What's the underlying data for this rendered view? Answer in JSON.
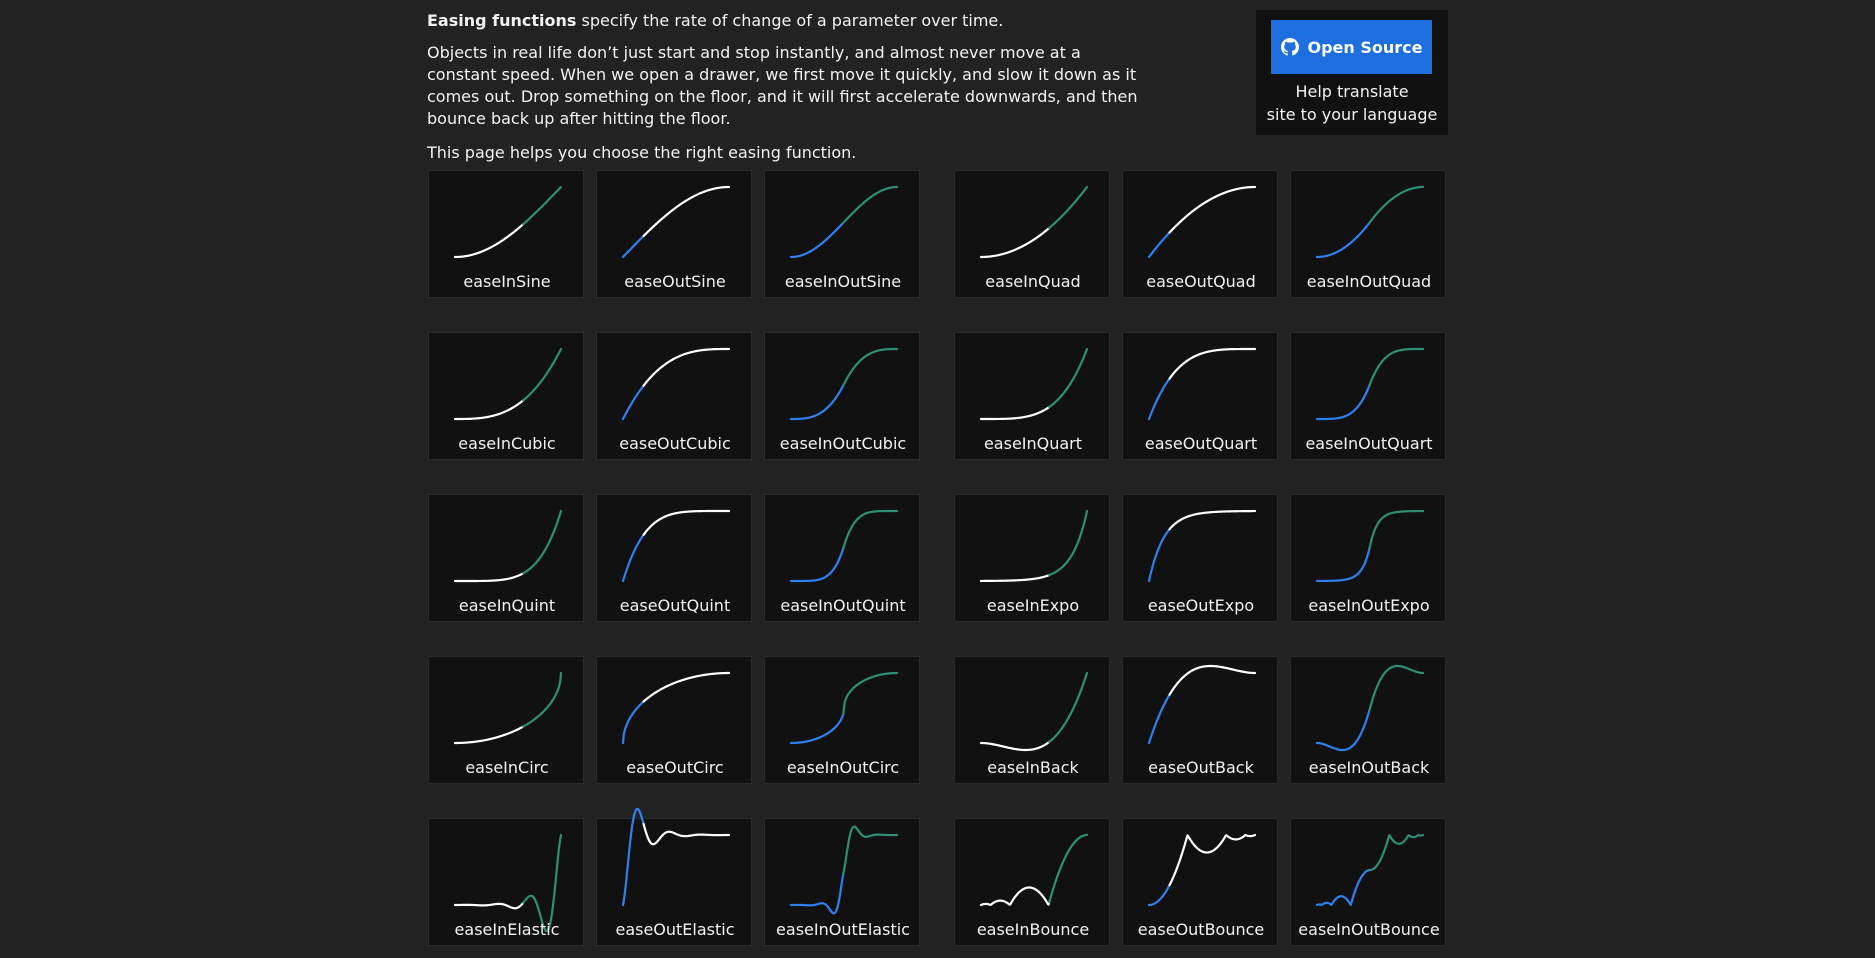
{
  "intro": {
    "lead_bold": "Easing functions",
    "lead_rest": " specify the rate of change of a parameter over time.",
    "paragraph_2": "Objects in real life don’t just start and stop instantly, and almost never move at a constant speed. When we open a drawer, we first move it quickly, and slow it down as it comes out. Drop something on the floor, and it will first accelerate downwards, and then bounce back up after hitting the floor.",
    "paragraph_3": "This page helps you choose the right easing function."
  },
  "open_source": {
    "button_label": "Open Source",
    "help_line_1": "Help translate",
    "help_line_2": "site to your language",
    "button_color": "#1d6fe0"
  },
  "colors": {
    "background": "#222222",
    "card": "#111111",
    "curve_white": "#ffffff",
    "curve_blue": "#2f80ed",
    "curve_green": "#2d8f73"
  },
  "easings": [
    {
      "name": "easeInSine",
      "mode": "in"
    },
    {
      "name": "easeOutSine",
      "mode": "out"
    },
    {
      "name": "easeInOutSine",
      "mode": "inout"
    },
    {
      "name": "easeInQuad",
      "mode": "in"
    },
    {
      "name": "easeOutQuad",
      "mode": "out"
    },
    {
      "name": "easeInOutQuad",
      "mode": "inout"
    },
    {
      "name": "easeInCubic",
      "mode": "in"
    },
    {
      "name": "easeOutCubic",
      "mode": "out"
    },
    {
      "name": "easeInOutCubic",
      "mode": "inout"
    },
    {
      "name": "easeInQuart",
      "mode": "in"
    },
    {
      "name": "easeOutQuart",
      "mode": "out"
    },
    {
      "name": "easeInOutQuart",
      "mode": "inout"
    },
    {
      "name": "easeInQuint",
      "mode": "in"
    },
    {
      "name": "easeOutQuint",
      "mode": "out"
    },
    {
      "name": "easeInOutQuint",
      "mode": "inout"
    },
    {
      "name": "easeInExpo",
      "mode": "in"
    },
    {
      "name": "easeOutExpo",
      "mode": "out"
    },
    {
      "name": "easeInOutExpo",
      "mode": "inout"
    },
    {
      "name": "easeInCirc",
      "mode": "in"
    },
    {
      "name": "easeOutCirc",
      "mode": "out"
    },
    {
      "name": "easeInOutCirc",
      "mode": "inout"
    },
    {
      "name": "easeInBack",
      "mode": "in"
    },
    {
      "name": "easeOutBack",
      "mode": "out"
    },
    {
      "name": "easeInOutBack",
      "mode": "inout"
    },
    {
      "name": "easeInElastic",
      "mode": "in"
    },
    {
      "name": "easeOutElastic",
      "mode": "out"
    },
    {
      "name": "easeInOutElastic",
      "mode": "inout"
    },
    {
      "name": "easeInBounce",
      "mode": "in"
    },
    {
      "name": "easeOutBounce",
      "mode": "out"
    },
    {
      "name": "easeInOutBounce",
      "mode": "inout"
    }
  ]
}
